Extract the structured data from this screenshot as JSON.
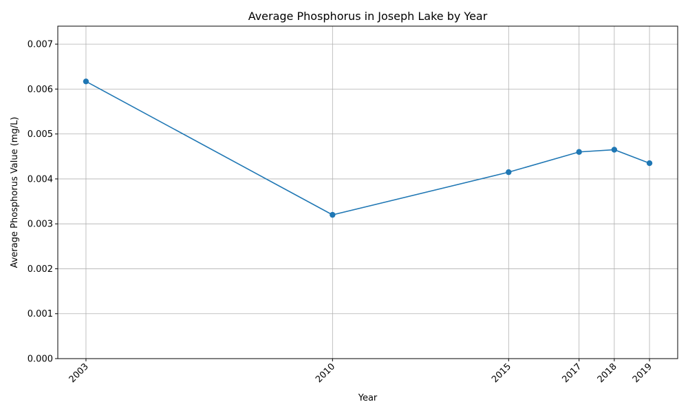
{
  "chart_data": {
    "type": "line",
    "title": "Average Phosphorus in Joseph Lake by Year",
    "xlabel": "Year",
    "ylabel": "Average Phosphorus Value (mg/L)",
    "x": [
      2003,
      2010,
      2015,
      2017,
      2018,
      2019
    ],
    "x_tick_labels": [
      "2003",
      "2010",
      "2015",
      "2017",
      "2018",
      "2019"
    ],
    "series": [
      {
        "values": [
          0.00617,
          0.0032,
          0.00415,
          0.0046,
          0.00465,
          0.00435
        ]
      }
    ],
    "xlim": [
      2002.2,
      2019.8
    ],
    "ylim": [
      0,
      0.0074
    ],
    "y_ticks": [
      0,
      0.001,
      0.002,
      0.003,
      0.004,
      0.005,
      0.006,
      0.007
    ],
    "y_tick_labels": [
      "0.000",
      "0.001",
      "0.002",
      "0.003",
      "0.004",
      "0.005",
      "0.006",
      "0.007"
    ],
    "grid": true,
    "marker": "circle",
    "line_color": "#1f77b4"
  }
}
